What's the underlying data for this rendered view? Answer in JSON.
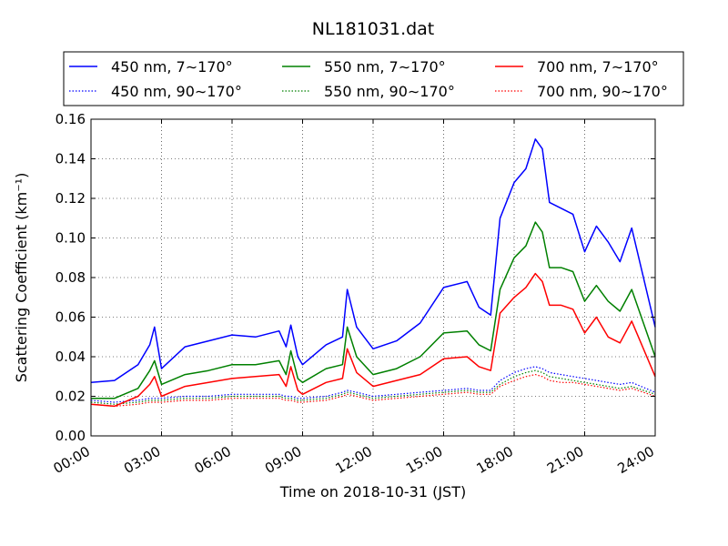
{
  "chart_data": {
    "type": "line",
    "title": "NL181031.dat",
    "xlabel": "Time on 2018-10-31 (JST)",
    "ylabel": "Scattering Coefficient (km⁻¹)",
    "xlim": [
      0,
      24
    ],
    "ylim": [
      0,
      0.16
    ],
    "grid": true,
    "legend_position": "top",
    "x_ticks": [
      "00:00",
      "03:00",
      "06:00",
      "09:00",
      "12:00",
      "15:00",
      "18:00",
      "21:00",
      "24:00"
    ],
    "y_ticks": [
      "0.00",
      "0.02",
      "0.04",
      "0.06",
      "0.08",
      "0.10",
      "0.12",
      "0.14",
      "0.16"
    ],
    "x": [
      0,
      1,
      2,
      2.5,
      2.7,
      3,
      4,
      5,
      6,
      7,
      8,
      8.3,
      8.5,
      8.8,
      9,
      10,
      10.7,
      10.9,
      11.3,
      12,
      13,
      14,
      15,
      16,
      16.5,
      17,
      17.4,
      18,
      18.5,
      18.9,
      19.2,
      19.5,
      20,
      20.5,
      21,
      21.5,
      22,
      22.5,
      23,
      24
    ],
    "series": [
      {
        "name": "450 nm, 7∼170°",
        "color": "#0000ff",
        "style": "solid",
        "values": [
          0.027,
          0.028,
          0.036,
          0.046,
          0.055,
          0.034,
          0.045,
          0.048,
          0.051,
          0.05,
          0.053,
          0.045,
          0.056,
          0.04,
          0.036,
          0.046,
          0.05,
          0.074,
          0.055,
          0.044,
          0.048,
          0.057,
          0.075,
          0.078,
          0.065,
          0.061,
          0.11,
          0.128,
          0.135,
          0.15,
          0.145,
          0.118,
          0.115,
          0.112,
          0.093,
          0.106,
          0.098,
          0.088,
          0.105,
          0.055
        ]
      },
      {
        "name": "450 nm, 90∼170°",
        "color": "#0000ff",
        "style": "dotted",
        "values": [
          0.018,
          0.017,
          0.018,
          0.019,
          0.019,
          0.019,
          0.02,
          0.02,
          0.021,
          0.021,
          0.021,
          0.02,
          0.02,
          0.019,
          0.019,
          0.02,
          0.022,
          0.023,
          0.022,
          0.02,
          0.021,
          0.022,
          0.023,
          0.024,
          0.023,
          0.023,
          0.028,
          0.032,
          0.034,
          0.035,
          0.034,
          0.032,
          0.031,
          0.03,
          0.029,
          0.028,
          0.027,
          0.026,
          0.027,
          0.022
        ]
      },
      {
        "name": "550 nm, 7∼170°",
        "color": "#008000",
        "style": "solid",
        "values": [
          0.019,
          0.019,
          0.024,
          0.033,
          0.038,
          0.026,
          0.031,
          0.033,
          0.036,
          0.036,
          0.038,
          0.031,
          0.043,
          0.029,
          0.027,
          0.034,
          0.036,
          0.055,
          0.04,
          0.031,
          0.034,
          0.04,
          0.052,
          0.053,
          0.046,
          0.043,
          0.074,
          0.09,
          0.096,
          0.108,
          0.103,
          0.085,
          0.085,
          0.083,
          0.068,
          0.076,
          0.068,
          0.063,
          0.074,
          0.04
        ]
      },
      {
        "name": "550 nm, 90∼170°",
        "color": "#008000",
        "style": "dotted",
        "values": [
          0.017,
          0.016,
          0.017,
          0.018,
          0.018,
          0.018,
          0.019,
          0.019,
          0.02,
          0.02,
          0.02,
          0.019,
          0.019,
          0.018,
          0.018,
          0.019,
          0.021,
          0.022,
          0.021,
          0.019,
          0.02,
          0.021,
          0.022,
          0.023,
          0.022,
          0.022,
          0.026,
          0.03,
          0.032,
          0.033,
          0.032,
          0.03,
          0.029,
          0.028,
          0.027,
          0.026,
          0.025,
          0.024,
          0.025,
          0.021
        ]
      },
      {
        "name": "700 nm, 7∼170°",
        "color": "#ff0000",
        "style": "solid",
        "values": [
          0.016,
          0.015,
          0.02,
          0.026,
          0.03,
          0.02,
          0.025,
          0.027,
          0.029,
          0.03,
          0.031,
          0.025,
          0.035,
          0.023,
          0.021,
          0.027,
          0.029,
          0.044,
          0.032,
          0.025,
          0.028,
          0.031,
          0.039,
          0.04,
          0.035,
          0.033,
          0.062,
          0.07,
          0.075,
          0.082,
          0.078,
          0.066,
          0.066,
          0.064,
          0.052,
          0.06,
          0.05,
          0.047,
          0.058,
          0.03
        ]
      },
      {
        "name": "700 nm, 90∼170°",
        "color": "#ff0000",
        "style": "dotted",
        "values": [
          0.016,
          0.015,
          0.016,
          0.017,
          0.017,
          0.017,
          0.018,
          0.018,
          0.019,
          0.019,
          0.019,
          0.018,
          0.018,
          0.017,
          0.017,
          0.018,
          0.02,
          0.021,
          0.02,
          0.018,
          0.019,
          0.02,
          0.021,
          0.022,
          0.021,
          0.021,
          0.025,
          0.028,
          0.03,
          0.031,
          0.03,
          0.028,
          0.027,
          0.027,
          0.026,
          0.025,
          0.024,
          0.023,
          0.024,
          0.02
        ]
      }
    ]
  }
}
